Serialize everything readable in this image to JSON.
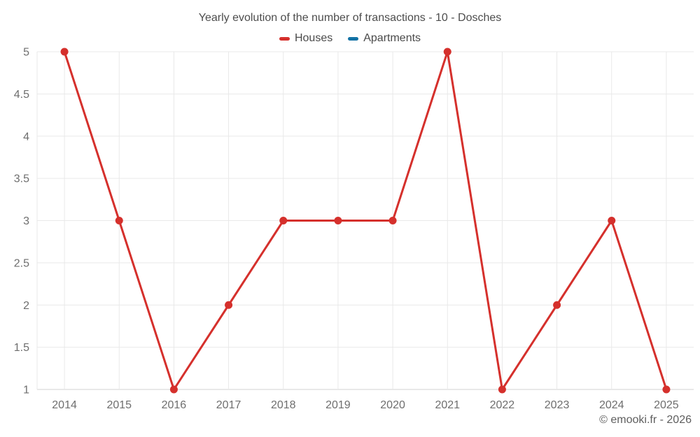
{
  "title": "Yearly evolution of the number of transactions - 10 - Dosches",
  "legend": {
    "items": [
      {
        "label": "Houses",
        "color": "#d5302c"
      },
      {
        "label": "Apartments",
        "color": "#1272a5"
      }
    ]
  },
  "copyright": "© emooki.fr - 2026",
  "colors": {
    "background": "#ffffff",
    "grid": "#e9e9e9",
    "axis_line": "#d0d0d0",
    "tick_label": "#6e6e6e",
    "title_text": "#4d4d4d",
    "legend_text": "#4a4a4a",
    "copyright_text": "#5e5e5e",
    "houses": "#d5302c",
    "apartments": "#1272a5"
  },
  "chart_data": {
    "type": "line",
    "title": "Yearly evolution of the number of transactions - 10 - Dosches",
    "categories": [
      "2014",
      "2015",
      "2016",
      "2017",
      "2018",
      "2019",
      "2020",
      "2021",
      "2022",
      "2023",
      "2024",
      "2025"
    ],
    "series": [
      {
        "name": "Houses",
        "color": "#d5302c",
        "values": [
          5,
          3,
          1,
          2,
          3,
          3,
          3,
          5,
          1,
          2,
          3,
          1
        ]
      },
      {
        "name": "Apartments",
        "color": "#1272a5",
        "values": []
      }
    ],
    "xlabel": "",
    "ylabel": "",
    "ylim": [
      1,
      5
    ],
    "y_ticks": [
      1,
      1.5,
      2,
      2.5,
      3,
      3.5,
      4,
      4.5,
      5
    ],
    "grid": true,
    "legend_position": "top",
    "marker_radius": 5.5,
    "line_width": 3
  }
}
